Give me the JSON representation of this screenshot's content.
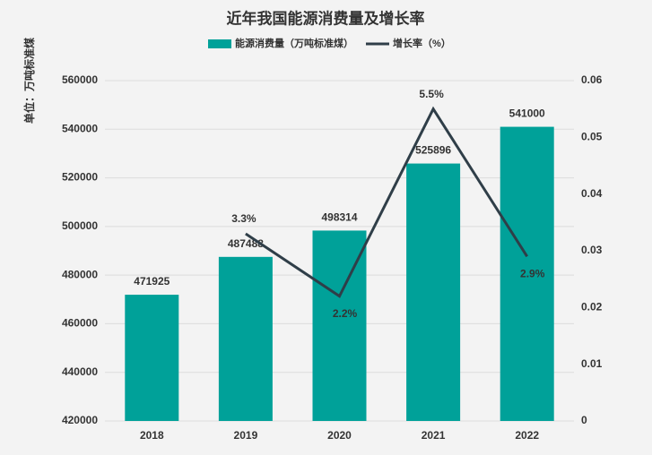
{
  "chart_data": {
    "type": "bar",
    "title": "近年我国能源消费量及增长率",
    "ylabel": "单位：万吨标准煤",
    "categories": [
      "2018",
      "2019",
      "2020",
      "2021",
      "2022"
    ],
    "series": [
      {
        "name": "能源消费量（万吨标准煤）",
        "type": "bar",
        "color": "#00a199",
        "values": [
          471925,
          487488,
          498314,
          525896,
          541000
        ]
      },
      {
        "name": "增长率（%）",
        "type": "line",
        "axis": "y2",
        "color": "#2f3e48",
        "values": [
          null,
          0.033,
          0.022,
          0.055,
          0.029
        ],
        "value_labels": [
          null,
          "3.3%",
          "2.2%",
          "5.5%",
          "2.9%"
        ]
      }
    ],
    "ylim": [
      420000,
      560000
    ],
    "yticks": [
      420000,
      440000,
      460000,
      480000,
      500000,
      520000,
      540000,
      560000
    ],
    "y2lim": [
      0,
      0.06
    ],
    "y2ticks": [
      0,
      0.01,
      0.02,
      0.03,
      0.04,
      0.05,
      0.06
    ],
    "grid": true,
    "legend": "top"
  }
}
